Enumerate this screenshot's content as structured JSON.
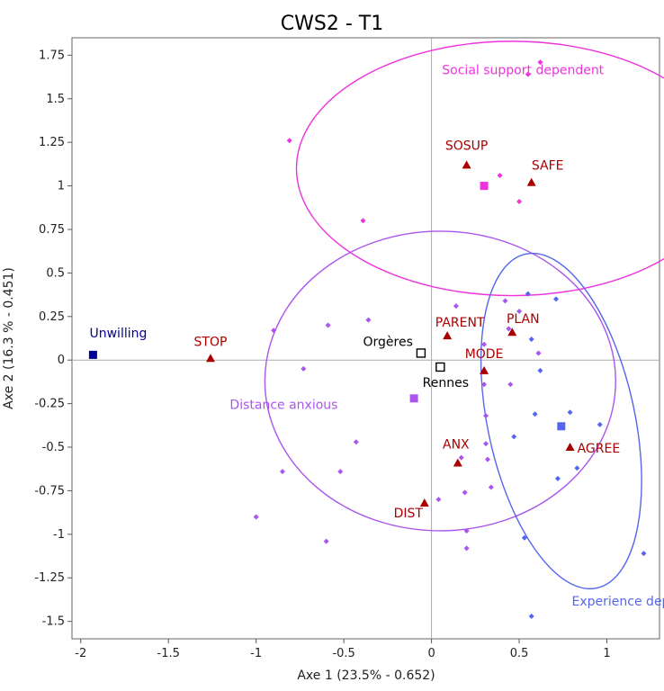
{
  "chart_data": {
    "type": "scatter",
    "title": "CWS2 - T1",
    "xlabel": "Axe 1 (23.5% - 0.652)",
    "ylabel": "Axe 2 (16.3 % - 0.451)",
    "xlim": [
      -2.05,
      1.3
    ],
    "ylim": [
      -1.6,
      1.85
    ],
    "x_ticks": [
      "-2",
      "-1.5",
      "-1",
      "-0.5",
      "0",
      "0.5",
      "1"
    ],
    "y_ticks": [
      "1.75",
      "1.5",
      "1.25",
      "1",
      "0.75",
      "0.5",
      "0.25",
      "0",
      "-0.25",
      "-0.5",
      "-0.75",
      "-1",
      "-1.25",
      "-1.5"
    ],
    "x_tick_values": [
      -2,
      -1.5,
      -1,
      -0.5,
      0,
      0.5,
      1
    ],
    "y_tick_values": [
      1.75,
      1.5,
      1.25,
      1,
      0.75,
      0.5,
      0.25,
      0,
      -0.25,
      -0.5,
      -0.75,
      -1,
      -1.25,
      -1.5
    ],
    "colors": {
      "magenta": "#ee33dd",
      "purple": "#aa55ee",
      "blue": "#5566ee",
      "darkred": "#aa0000",
      "navy": "#000099",
      "black": "#000000",
      "axis": "#aaaaaa",
      "frame": "#666666"
    },
    "ellipses": [
      {
        "label": "Social support dependent",
        "cx": 0.46,
        "cy": 1.1,
        "rx": 1.23,
        "ry": 0.73,
        "angle": 0,
        "color": "#ee33dd"
      },
      {
        "label": "Distance anxious",
        "cx": 0.05,
        "cy": -0.12,
        "rx": 1.0,
        "ry": 0.86,
        "angle": 0,
        "color": "#aa55ee"
      },
      {
        "label": "Experience dependent",
        "cx": 0.74,
        "cy": -0.35,
        "rx": 0.42,
        "ry": 0.98,
        "angle": 12,
        "color": "#5566ee"
      }
    ],
    "group_labels": [
      {
        "text": "Social support dependent",
        "x": 0.06,
        "y": 1.64,
        "color": "#ee33dd"
      },
      {
        "text": "Distance anxious",
        "x": -1.15,
        "y": -0.28,
        "color": "#aa55ee"
      },
      {
        "text": "Experience dependent",
        "x": 0.8,
        "y": -1.41,
        "color": "#5566ee"
      },
      {
        "text": "Unwilling",
        "x": -1.95,
        "y": 0.13,
        "color": "#000099"
      }
    ],
    "series": [
      {
        "name": "Unwilling",
        "marker": "square",
        "color": "#000099",
        "points": [
          [
            -1.93,
            0.03
          ]
        ]
      },
      {
        "name": "Social support dependent",
        "marker": "square",
        "color": "#ee33dd",
        "points": [
          [
            0.3,
            1.0
          ]
        ]
      },
      {
        "name": "Distance anxious",
        "marker": "square",
        "color": "#aa55ee",
        "points": [
          [
            -0.1,
            -0.22
          ]
        ]
      },
      {
        "name": "Experience dependent",
        "marker": "square",
        "color": "#5566ee",
        "points": [
          [
            0.74,
            -0.38
          ]
        ]
      },
      {
        "name": "Orgères",
        "marker": "hollow-square",
        "color": "#000000",
        "points": [
          [
            -0.06,
            0.04
          ]
        ]
      },
      {
        "name": "Rennes",
        "marker": "hollow-square",
        "color": "#000000",
        "points": [
          [
            0.05,
            -0.04
          ]
        ]
      }
    ],
    "variables": [
      {
        "name": "SOSUP",
        "x": 0.2,
        "y": 1.12
      },
      {
        "name": "SAFE",
        "x": 0.57,
        "y": 1.02
      },
      {
        "name": "STOP",
        "x": -1.26,
        "y": 0.01
      },
      {
        "name": "PARENT",
        "x": 0.09,
        "y": 0.14
      },
      {
        "name": "PLAN",
        "x": 0.46,
        "y": 0.16
      },
      {
        "name": "MODE",
        "x": 0.3,
        "y": -0.06
      },
      {
        "name": "ANX",
        "x": 0.15,
        "y": -0.59
      },
      {
        "name": "AGREE",
        "x": 0.79,
        "y": -0.5
      },
      {
        "name": "DIST",
        "x": -0.04,
        "y": -0.82
      }
    ],
    "individuals": {
      "magenta": [
        [
          0.62,
          1.71
        ],
        [
          0.55,
          1.64
        ],
        [
          -0.81,
          1.26
        ],
        [
          0.39,
          1.06
        ],
        [
          0.5,
          0.91
        ],
        [
          -0.39,
          0.8
        ]
      ],
      "purple": [
        [
          0.14,
          0.31
        ],
        [
          0.42,
          0.34
        ],
        [
          -0.59,
          0.2
        ],
        [
          -0.36,
          0.23
        ],
        [
          -0.9,
          0.17
        ],
        [
          0.5,
          0.28
        ],
        [
          0.44,
          0.18
        ],
        [
          -0.73,
          -0.05
        ],
        [
          0.61,
          0.04
        ],
        [
          0.3,
          0.09
        ],
        [
          0.45,
          -0.14
        ],
        [
          0.3,
          -0.14
        ],
        [
          0.31,
          -0.32
        ],
        [
          0.31,
          -0.48
        ],
        [
          -0.43,
          -0.47
        ],
        [
          -0.85,
          -0.64
        ],
        [
          -0.52,
          -0.64
        ],
        [
          0.17,
          -0.56
        ],
        [
          0.32,
          -0.57
        ],
        [
          0.34,
          -0.73
        ],
        [
          0.19,
          -0.76
        ],
        [
          0.04,
          -0.8
        ],
        [
          0.2,
          -0.98
        ],
        [
          -0.6,
          -1.04
        ],
        [
          -1.0,
          -0.9
        ],
        [
          0.2,
          -1.08
        ]
      ],
      "blue": [
        [
          0.55,
          0.38
        ],
        [
          0.71,
          0.35
        ],
        [
          0.57,
          0.12
        ],
        [
          0.62,
          -0.06
        ],
        [
          0.59,
          -0.31
        ],
        [
          0.79,
          -0.3
        ],
        [
          0.47,
          -0.44
        ],
        [
          0.72,
          -0.68
        ],
        [
          0.83,
          -0.62
        ],
        [
          0.96,
          -0.37
        ],
        [
          0.53,
          -1.02
        ],
        [
          0.57,
          -1.47
        ],
        [
          1.21,
          -1.11
        ]
      ]
    }
  }
}
